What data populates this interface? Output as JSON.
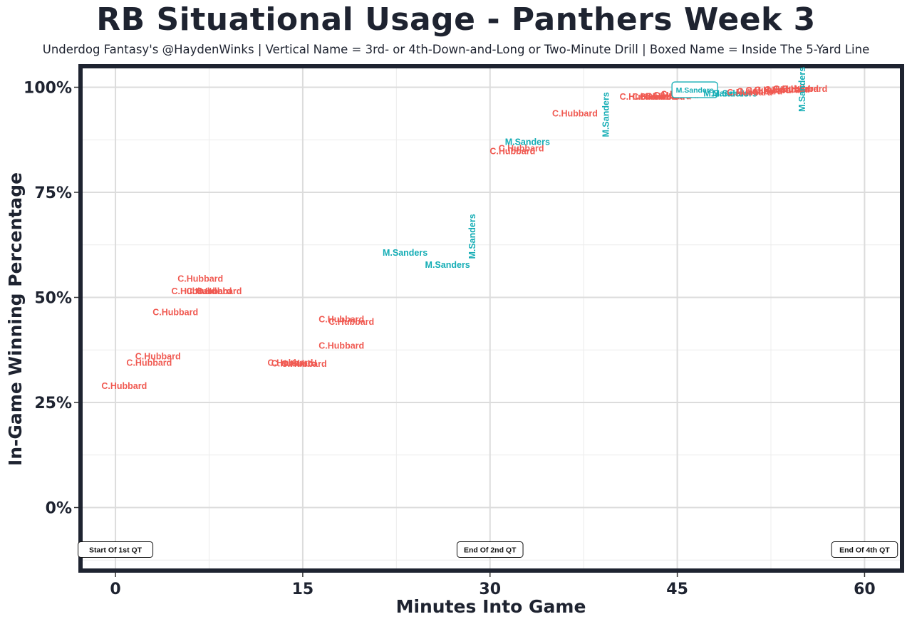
{
  "chart_data": {
    "type": "scatter",
    "title": "RB Situational Usage - Panthers Week 3",
    "subtitle": "Underdog Fantasy's @HaydenWinks | Vertical Name = 3rd- or 4th-Down-and-Long or Two-Minute Drill | Boxed Name = Inside The 5-Yard Line",
    "xlabel": "Minutes Into Game",
    "ylabel": "In-Game Winning Percentage",
    "xlim": [
      -2.8,
      63
    ],
    "ylim": [
      -15,
      105
    ],
    "x_ticks": [
      0,
      15,
      30,
      45,
      60
    ],
    "x_tick_labels": [
      "0",
      "15",
      "30",
      "45",
      "60"
    ],
    "y_ticks": [
      0,
      25,
      50,
      75,
      100
    ],
    "y_tick_labels": [
      "0%",
      "25%",
      "50%",
      "75%",
      "100%"
    ],
    "grid": true,
    "colors": {
      "C.Hubbard": "#f05a52",
      "M.Sanders": "#14adb5"
    },
    "annotations": [
      {
        "text": "Start Of 1st QT",
        "x": 0.0
      },
      {
        "text": "End Of 2nd QT",
        "x": 30.0
      },
      {
        "text": "End Of 4th QT",
        "x": 60.0
      }
    ],
    "points": [
      {
        "x": 0.7,
        "y": 29,
        "player": "C.Hubbard",
        "style": "normal"
      },
      {
        "x": 2.7,
        "y": 34.5,
        "player": "C.Hubbard",
        "style": "normal"
      },
      {
        "x": 3.4,
        "y": 36,
        "player": "C.Hubbard",
        "style": "normal"
      },
      {
        "x": 4.8,
        "y": 46.5,
        "player": "C.Hubbard",
        "style": "normal"
      },
      {
        "x": 6.3,
        "y": 51.5,
        "player": "C.Hubbard",
        "style": "normal"
      },
      {
        "x": 7.5,
        "y": 51.5,
        "player": "C.Hubbard",
        "style": "normal"
      },
      {
        "x": 8.3,
        "y": 51.5,
        "player": "C.Hubbard",
        "style": "normal"
      },
      {
        "x": 6.8,
        "y": 54.5,
        "player": "C.Hubbard",
        "style": "normal"
      },
      {
        "x": 14.0,
        "y": 34.5,
        "player": "C.Hubbard",
        "style": "normal"
      },
      {
        "x": 14.3,
        "y": 34.3,
        "player": "C.Hubbard",
        "style": "normal"
      },
      {
        "x": 15.1,
        "y": 34.2,
        "player": "C.Hubbard",
        "style": "normal"
      },
      {
        "x": 18.1,
        "y": 44.8,
        "player": "C.Hubbard",
        "style": "normal"
      },
      {
        "x": 18.9,
        "y": 44.2,
        "player": "C.Hubbard",
        "style": "normal"
      },
      {
        "x": 18.1,
        "y": 38.6,
        "player": "C.Hubbard",
        "style": "normal"
      },
      {
        "x": 23.2,
        "y": 60.7,
        "player": "M.Sanders",
        "style": "normal"
      },
      {
        "x": 26.6,
        "y": 57.8,
        "player": "M.Sanders",
        "style": "normal"
      },
      {
        "x": 28.6,
        "y": 64.5,
        "player": "M.Sanders",
        "style": "vertical"
      },
      {
        "x": 31.8,
        "y": 84.8,
        "player": "C.Hubbard",
        "style": "normal"
      },
      {
        "x": 32.5,
        "y": 85.5,
        "player": "C.Hubbard",
        "style": "normal"
      },
      {
        "x": 33.0,
        "y": 87.0,
        "player": "M.Sanders",
        "style": "normal"
      },
      {
        "x": 36.8,
        "y": 93.8,
        "player": "C.Hubbard",
        "style": "normal"
      },
      {
        "x": 39.3,
        "y": 93.5,
        "player": "M.Sanders",
        "style": "vertical"
      },
      {
        "x": 42.2,
        "y": 97.8,
        "player": "C.Hubbard",
        "style": "normal"
      },
      {
        "x": 43.2,
        "y": 97.8,
        "player": "C.Hubbard",
        "style": "normal"
      },
      {
        "x": 43.8,
        "y": 97.8,
        "player": "C.Hubbard",
        "style": "normal"
      },
      {
        "x": 44.3,
        "y": 97.9,
        "player": "C.Hubbard",
        "style": "normal"
      },
      {
        "x": 44.9,
        "y": 98.1,
        "player": "C.Hubbard",
        "style": "normal"
      },
      {
        "x": 45.5,
        "y": 98.4,
        "player": "C.Hubbard",
        "style": "normal"
      },
      {
        "x": 46.4,
        "y": 99.4,
        "player": "M.Sanders",
        "style": "boxed"
      },
      {
        "x": 48.9,
        "y": 98.6,
        "player": "M.Sanders",
        "style": "normal"
      },
      {
        "x": 49.6,
        "y": 98.6,
        "player": "M.Sanders",
        "style": "normal"
      },
      {
        "x": 50.8,
        "y": 98.8,
        "player": "C.Hubbard",
        "style": "normal"
      },
      {
        "x": 51.6,
        "y": 99.1,
        "player": "C.Hubbard",
        "style": "normal"
      },
      {
        "x": 52.3,
        "y": 99.3,
        "player": "C.Hubbard",
        "style": "normal"
      },
      {
        "x": 53.0,
        "y": 99.4,
        "player": "C.Hubbard",
        "style": "normal"
      },
      {
        "x": 53.8,
        "y": 99.5,
        "player": "C.Hubbard",
        "style": "normal"
      },
      {
        "x": 54.5,
        "y": 99.7,
        "player": "C.Hubbard",
        "style": "normal"
      },
      {
        "x": 55.2,
        "y": 99.7,
        "player": "C.Hubbard",
        "style": "normal"
      },
      {
        "x": 55.0,
        "y": 99.5,
        "player": "M.Sanders",
        "style": "vertical"
      }
    ]
  }
}
